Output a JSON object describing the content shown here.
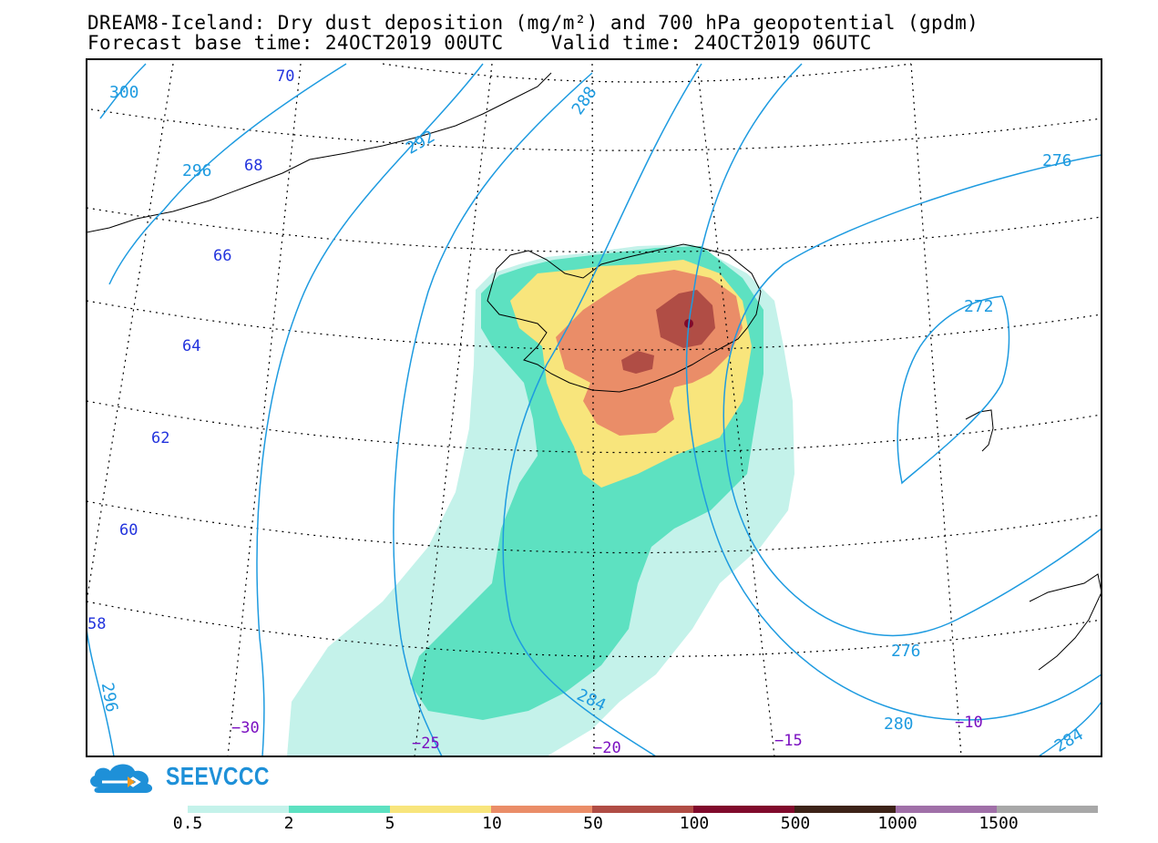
{
  "title": {
    "line1": "DREAM8-Iceland: Dry dust deposition (mg/m²) and 700 hPa geopotential (gpdm)",
    "line2": "Forecast base time: 24OCT2019 00UTC    Valid time: 24OCT2019 06UTC"
  },
  "map": {
    "region": "Iceland and North Atlantic",
    "latitude_labels": [
      "70",
      "68",
      "66",
      "64",
      "62",
      "60",
      "58"
    ],
    "longitude_labels": [
      "−30",
      "−25",
      "−20",
      "−15",
      "−10"
    ],
    "contour_labels": [
      "300",
      "296",
      "292",
      "288",
      "284",
      "280",
      "276",
      "272",
      "276",
      "296",
      "284"
    ],
    "colors": {
      "contour": "#1e9be0",
      "lat_label": "#2233dd",
      "lon_label": "#7a0ec0",
      "coastline": "#000000"
    }
  },
  "legend": {
    "logo_text": "SEEVCCC",
    "labels": [
      "0.5",
      "2",
      "5",
      "10",
      "50",
      "100",
      "500",
      "1000",
      "1500"
    ],
    "colors": [
      "#c4f2ea",
      "#5de1c1",
      "#f8e57c",
      "#ea8d68",
      "#b04d45",
      "#800a2c",
      "#3d2318",
      "#a070a8",
      "#a8a8a8"
    ]
  }
}
